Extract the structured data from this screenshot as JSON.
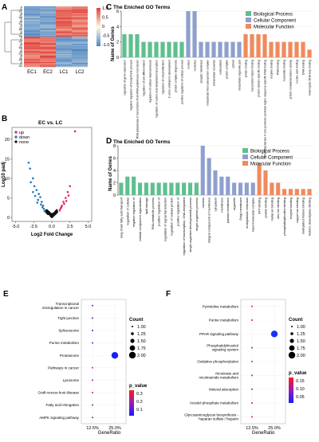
{
  "panels": {
    "A": {
      "label": "A",
      "columns": [
        "EC1",
        "EC2",
        "LC1",
        "LC2"
      ],
      "colorbar_ticks": [
        "1.0",
        "0.5",
        "0",
        "-0.5",
        "-1.0"
      ],
      "colors": {
        "high": "#e0403a",
        "mid": "#fffbe0",
        "low": "#4f86c6"
      }
    },
    "B": {
      "label": "B",
      "title": "EC vs. LC",
      "xlabel": "Log2 Fold Change",
      "ylabel": "Log10 padj",
      "xticks": [
        "-5.0",
        "-2.5",
        "0.0",
        "2.5",
        "5.0"
      ],
      "yticks": [
        "0",
        "5",
        "10",
        "15",
        "20"
      ],
      "legend": [
        {
          "name": "up",
          "color": "#e0245e"
        },
        {
          "name": "down",
          "color": "#1f77b4"
        },
        {
          "name": "none",
          "color": "#111111"
        }
      ]
    },
    "C": {
      "label": "C",
      "title": "The Eniched GO Terms",
      "ylabel": "Name of Genes",
      "yticks": [
        "0",
        "2",
        "4",
        "6"
      ],
      "ymax": 6,
      "legend": [
        {
          "name": "Biological Process",
          "color": "#5fbf8f"
        },
        {
          "name": "Cellular Component",
          "color": "#8ea0cc"
        },
        {
          "name": "Molecular Function",
          "color": "#f08a5d"
        }
      ],
      "categories": [
        "regulation of gene expression",
        "negative regulation of biosynthetic process",
        "RNA polymerase II transcription from RNA polymerase II promoter",
        "regulation of cell differentiation",
        "regulation of cellular macromolecule",
        "regulation of nucleic acid-templated transcription",
        "regulation of cell proliferation",
        "in utero embryonic development",
        "protein complex biogenesis",
        "positive regulation of cellular process",
        "nucleus",
        "nucleolus",
        "synaptic membrane",
        "intracellular ribonucleoprotein complex",
        "extracellular exosome",
        "nucleoplasm",
        "protein complex",
        "cytosol",
        "intracellular organelle part",
        "protein binding",
        "transcription factor binding",
        "protein domain specific binding",
        "RNA polymerase II core promoter proximal region sequence-specific DNA binding",
        "enzyme binding",
        "RNA binding",
        "nucleotide binding",
        "protein homodimerization activity",
        "nucleic acid binding",
        "DNA binding",
        "heterocyclic DNA loop binding"
      ],
      "values": [
        3,
        3,
        3,
        2,
        2,
        2,
        2,
        2,
        2,
        2,
        6,
        6,
        2,
        2,
        2,
        2,
        2,
        2,
        2,
        3,
        3,
        3,
        3,
        2,
        2,
        2,
        2,
        2,
        2,
        1
      ],
      "groups": [
        "bp",
        "bp",
        "bp",
        "bp",
        "bp",
        "bp",
        "bp",
        "bp",
        "bp",
        "bp",
        "cc",
        "cc",
        "cc",
        "cc",
        "cc",
        "cc",
        "cc",
        "cc",
        "cc",
        "mf",
        "mf",
        "mf",
        "mf",
        "mf",
        "mf",
        "mf",
        "mf",
        "mf",
        "mf",
        "mf"
      ]
    },
    "D": {
      "label": "D",
      "title": "The Eniched GO Terms",
      "ylabel": "Name of Genes",
      "yticks": [
        "0",
        "2",
        "4",
        "6",
        "8"
      ],
      "ymax": 8,
      "legend": [
        {
          "name": "Biological Process",
          "color": "#5fbf8f"
        },
        {
          "name": "Cellular Component",
          "color": "#8ea0cc"
        },
        {
          "name": "Molecular Function",
          "color": "#f08a5d"
        }
      ],
      "categories": [
        "long-chain fatty acid transport",
        "regulation of cellular",
        "negative regulation of",
        "cellular component organization",
        "lipid storage",
        "RNA metabolic process",
        "positive regulation of",
        "regulation of signal transduction",
        "regulation of cellular protein",
        "positive regulation of",
        "regulation of transcription, DNA-templated",
        "single-organism developmental process",
        "single-organism process",
        "nucleus",
        "integral component of membrane",
        "cytoplasm",
        "membrane",
        "plasma membrane",
        "organelle",
        "Golgi membrane",
        "endoplasmic reticulum",
        "macromolecular complex",
        "ATP binding",
        "protein binding",
        "metal ion binding",
        "zinc ion binding",
        "phosphatidylinositol binding",
        "enzyme binding",
        "copper ion binding",
        "methylated histone binding",
        "histone deacetylase binding"
      ],
      "values": [
        2,
        3,
        3,
        2,
        2,
        2,
        2,
        2,
        2,
        2,
        2,
        2,
        2,
        8,
        6,
        4,
        3,
        3,
        2,
        2,
        2,
        2,
        5,
        4,
        2,
        2,
        1,
        1,
        1,
        1,
        1
      ],
      "groups": [
        "bp",
        "bp",
        "bp",
        "bp",
        "bp",
        "bp",
        "bp",
        "bp",
        "bp",
        "bp",
        "bp",
        "bp",
        "bp",
        "cc",
        "cc",
        "cc",
        "cc",
        "cc",
        "cc",
        "cc",
        "cc",
        "cc",
        "mf",
        "mf",
        "mf",
        "mf",
        "mf",
        "mf",
        "mf",
        "mf",
        "mf"
      ]
    },
    "E": {
      "label": "E",
      "xlabel": "GeneRatio",
      "xticks": [
        "12.5%",
        "25.0%"
      ],
      "xticks_values": [
        0.125,
        0.25
      ],
      "count_title": "Count",
      "count_ticks": [
        "1.00",
        "1.25",
        "1.50",
        "1.75",
        "2.00"
      ],
      "pvalue_title": "p_value",
      "pvalue_ticks": [
        "0.3",
        "0.2",
        "0.1"
      ],
      "pathways": [
        "Transcriptional misregulation in cancer",
        "Tight junction",
        "Spliceosome",
        "Purine metabolism",
        "Proteasome",
        "Pathways in cancer",
        "Lysosome",
        "Graft-versus-host disease",
        "Fatty acid elongation",
        "AMPK signaling pathway"
      ],
      "gene_ratio": [
        0.125,
        0.125,
        0.125,
        0.125,
        0.25,
        0.125,
        0.125,
        0.125,
        0.125,
        0.125
      ],
      "count": [
        1,
        1,
        1,
        1,
        2,
        1,
        1,
        1,
        1,
        1
      ],
      "colors": [
        "#7a20b8",
        "#7a20b8",
        "#4a20d8",
        "#7a20b8",
        "#1a20ff",
        "#cc2090",
        "#9a20a8",
        "#cc2060",
        "#9a20a8",
        "#b02080"
      ]
    },
    "F": {
      "label": "F",
      "xlabel": "GeneRatio",
      "xticks": [
        "12.5%",
        "25.0%"
      ],
      "xticks_values": [
        0.125,
        0.25
      ],
      "count_title": "Count",
      "count_ticks": [
        "1.00",
        "1.25",
        "1.50",
        "1.75",
        "2.00"
      ],
      "pvalue_title": "p_value",
      "pvalue_ticks": [
        "0.15",
        "0.10",
        "0.05"
      ],
      "pathways": [
        "Pyrimidine metabolism",
        "Purine metabolism",
        "PPAR signaling pathway",
        "Phosphatidylinositol signaling system",
        "Oxidative phosphorylation",
        "Nicotinate and nicotinamide metabolism",
        "Mineral absorption",
        "Inositol phosphate metabolism",
        "Glycosaminoglycan biosynthesis - heparan sulfate / heparin"
      ],
      "gene_ratio": [
        0.125,
        0.125,
        0.25,
        0.125,
        0.125,
        0.125,
        0.125,
        0.125,
        0.125
      ],
      "count": [
        1,
        1,
        2,
        1,
        1,
        1,
        1,
        1,
        1
      ],
      "colors": [
        "#d02060",
        "#c02070",
        "#1a30ff",
        "#b02080",
        "#d02060",
        "#c02070",
        "#b02080",
        "#c02070",
        "#e02050"
      ]
    }
  }
}
